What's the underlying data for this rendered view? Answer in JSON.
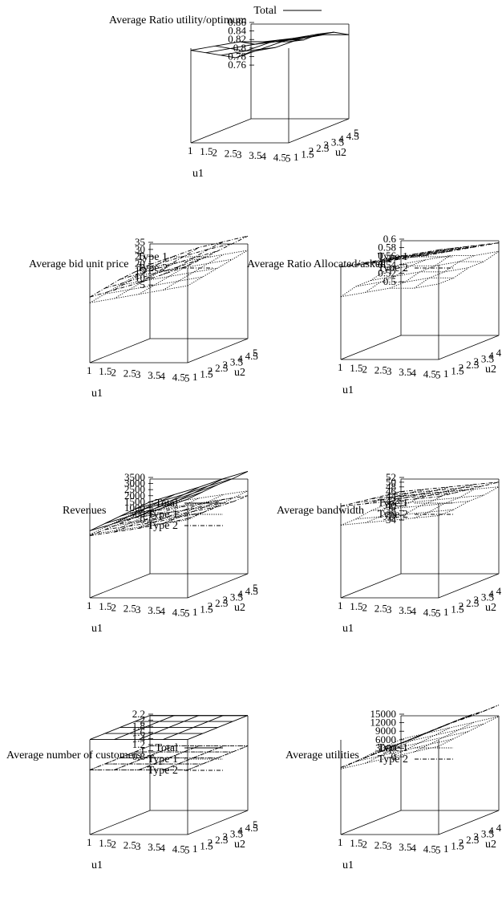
{
  "chart_data": [
    {
      "type": "surface3d",
      "title": "Average Ratio utility/optimum",
      "xlabel": "u1",
      "ylabel": "u2",
      "x_ticks": [
        "1",
        "1.5",
        "2",
        "2.5",
        "3",
        "3.5",
        "4",
        "4.5",
        "5"
      ],
      "y_ticks": [
        "1",
        "1.5",
        "2",
        "2.5",
        "3",
        "3.5",
        "4",
        "4.5",
        "5"
      ],
      "z_ticks": [
        "0.76",
        "0.78",
        "0.8",
        "0.82",
        "0.84",
        "0.86"
      ],
      "zlim": [
        0.76,
        0.86
      ],
      "x": [
        1,
        2,
        3,
        4,
        5
      ],
      "y": [
        1,
        2,
        3,
        4,
        5
      ],
      "series": [
        {
          "name": "Total",
          "style": "solid",
          "z": [
            [
              0.84,
              0.85,
              0.86,
              0.86,
              0.86
            ],
            [
              0.82,
              0.83,
              0.84,
              0.85,
              0.85
            ],
            [
              0.8,
              0.81,
              0.83,
              0.84,
              0.85
            ],
            [
              0.78,
              0.8,
              0.82,
              0.83,
              0.84
            ],
            [
              0.78,
              0.79,
              0.81,
              0.82,
              0.82
            ]
          ]
        }
      ]
    },
    {
      "type": "surface3d",
      "title": "Average bid unit price",
      "xlabel": "u1",
      "ylabel": "u2",
      "x_ticks": [
        "1",
        "1.5",
        "2",
        "2.5",
        "3",
        "3.5",
        "4",
        "4.5",
        "5"
      ],
      "y_ticks": [
        "1",
        "1.5",
        "2",
        "2.5",
        "3",
        "3.5",
        "4",
        "4.5",
        "5"
      ],
      "z_ticks": [
        "5",
        "10",
        "15",
        "20",
        "25",
        "30",
        "35"
      ],
      "zlim": [
        5,
        35
      ],
      "x": [
        1,
        2,
        3,
        4,
        5
      ],
      "y": [
        1,
        2,
        3,
        4,
        5
      ],
      "series": [
        {
          "name": "Type 1",
          "style": "dotted",
          "z": [
            [
              6,
              9,
              12,
              15,
              18
            ],
            [
              8,
              11,
              14,
              17,
              20
            ],
            [
              10,
              13,
              16,
              19,
              22
            ],
            [
              12,
              15,
              18,
              21,
              24
            ],
            [
              14,
              17,
              20,
              23,
              26
            ]
          ]
        },
        {
          "name": "Type 2",
          "style": "dashdot",
          "z": [
            [
              10,
              15,
              20,
              26,
              32
            ],
            [
              12,
              17,
              22,
              27,
              33
            ],
            [
              14,
              19,
              24,
              29,
              34
            ],
            [
              15,
              21,
              26,
              31,
              35
            ],
            [
              16,
              22,
              28,
              32,
              36
            ]
          ]
        }
      ]
    },
    {
      "type": "surface3d",
      "title": "Average Ratio Allocated/asked",
      "xlabel": "u1",
      "ylabel": "u2",
      "x_ticks": [
        "1",
        "1.5",
        "2",
        "2.5",
        "3",
        "3.5",
        "4",
        "4.5",
        "5"
      ],
      "y_ticks": [
        "1",
        "1.5",
        "2",
        "2.5",
        "3",
        "3.5",
        "4",
        "4.5",
        "5"
      ],
      "z_ticks": [
        "0.5",
        "0.52",
        "0.54",
        "0.56",
        "0.58",
        "0.6"
      ],
      "zlim": [
        0.5,
        0.6
      ],
      "x": [
        1,
        2,
        3,
        4,
        5
      ],
      "y": [
        1,
        2,
        3,
        4,
        5
      ],
      "series": [
        {
          "name": "Type 1",
          "style": "dotted",
          "z": [
            [
              0.51,
              0.52,
              0.53,
              0.53,
              0.54
            ],
            [
              0.52,
              0.53,
              0.53,
              0.54,
              0.54
            ],
            [
              0.52,
              0.53,
              0.54,
              0.54,
              0.55
            ],
            [
              0.53,
              0.54,
              0.54,
              0.55,
              0.55
            ],
            [
              0.53,
              0.54,
              0.55,
              0.55,
              0.56
            ]
          ]
        },
        {
          "name": "Type 2",
          "style": "dashdot",
          "z": [
            [
              0.58,
              0.59,
              0.6,
              0.61,
              0.62
            ],
            [
              0.57,
              0.58,
              0.59,
              0.6,
              0.61
            ],
            [
              0.56,
              0.57,
              0.58,
              0.59,
              0.6
            ],
            [
              0.55,
              0.56,
              0.57,
              0.58,
              0.59
            ],
            [
              0.55,
              0.55,
              0.56,
              0.57,
              0.58
            ]
          ]
        }
      ]
    },
    {
      "type": "surface3d",
      "title": "Revenues",
      "xlabel": "u1",
      "ylabel": "u2",
      "x_ticks": [
        "1",
        "1.5",
        "2",
        "2.5",
        "3",
        "3.5",
        "4",
        "4.5",
        "5"
      ],
      "y_ticks": [
        "1",
        "1.5",
        "2",
        "2.5",
        "3",
        "3.5",
        "4",
        "4.5",
        "5"
      ],
      "z_ticks": [
        "0",
        "500",
        "1000",
        "1500",
        "2000",
        "2500",
        "3000",
        "3500"
      ],
      "zlim": [
        0,
        3500
      ],
      "x": [
        1,
        2,
        3,
        4,
        5
      ],
      "y": [
        1,
        2,
        3,
        4,
        5
      ],
      "series": [
        {
          "name": "Total",
          "style": "solid",
          "z": [
            [
              700,
              1300,
              1900,
              2600,
              3300
            ],
            [
              800,
              1400,
              2000,
              2700,
              3400
            ],
            [
              900,
              1500,
              2100,
              2800,
              3500
            ],
            [
              1000,
              1600,
              2200,
              2900,
              3500
            ],
            [
              1100,
              1700,
              2300,
              3000,
              3600
            ]
          ]
        },
        {
          "name": "Type 1",
          "style": "dotted",
          "z": [
            [
              400,
              700,
              1000,
              1300,
              1600
            ],
            [
              500,
              800,
              1100,
              1400,
              1700
            ],
            [
              600,
              900,
              1200,
              1500,
              1800
            ],
            [
              700,
              1000,
              1300,
              1600,
              1900
            ],
            [
              800,
              1100,
              1400,
              1700,
              2000
            ]
          ]
        },
        {
          "name": "Type 2",
          "style": "dashdot",
          "z": [
            [
              300,
              600,
              900,
              1300,
              1700
            ],
            [
              300,
              600,
              900,
              1300,
              1700
            ],
            [
              300,
              600,
              900,
              1300,
              1700
            ],
            [
              300,
              600,
              900,
              1300,
              1600
            ],
            [
              300,
              600,
              900,
              1300,
              1600
            ]
          ]
        }
      ]
    },
    {
      "type": "surface3d",
      "title": "Average bandwidth",
      "xlabel": "u1",
      "ylabel": "u2",
      "x_ticks": [
        "1",
        "1.5",
        "2",
        "2.5",
        "3",
        "3.5",
        "4",
        "4.5",
        "5"
      ],
      "y_ticks": [
        "1",
        "1.5",
        "2",
        "2.5",
        "3",
        "3.5",
        "4",
        "4.5",
        "5"
      ],
      "z_ticks": [
        "34",
        "36",
        "38",
        "40",
        "42",
        "44",
        "46",
        "48",
        "50",
        "52"
      ],
      "zlim": [
        34,
        52
      ],
      "x": [
        1,
        2,
        3,
        4,
        5
      ],
      "y": [
        1,
        2,
        3,
        4,
        5
      ],
      "series": [
        {
          "name": "Type 1",
          "style": "dotted",
          "z": [
            [
              40,
              41,
              42,
              43,
              44
            ],
            [
              40,
              41,
              42,
              43,
              44
            ],
            [
              41,
              42,
              43,
              44,
              45
            ],
            [
              41,
              42,
              43,
              44,
              45
            ],
            [
              42,
              43,
              44,
              45,
              46
            ]
          ]
        },
        {
          "name": "Type 2",
          "style": "dashdot",
          "z": [
            [
              48,
              49,
              50,
              51,
              52
            ],
            [
              47,
              48,
              49,
              50,
              51
            ],
            [
              46,
              47,
              48,
              49,
              50
            ],
            [
              45,
              46,
              47,
              48,
              49
            ],
            [
              44,
              45,
              46,
              47,
              48
            ]
          ]
        }
      ]
    },
    {
      "type": "surface3d",
      "title": "Average number of customers",
      "xlabel": "u1",
      "ylabel": "u2",
      "x_ticks": [
        "1",
        "1.5",
        "2",
        "2.5",
        "3",
        "3.5",
        "4",
        "4.5",
        "5"
      ],
      "y_ticks": [
        "1",
        "1.5",
        "2",
        "2.5",
        "3",
        "3.5",
        "4",
        "4.5",
        "5"
      ],
      "z_ticks": [
        "0.8",
        "1",
        "1.2",
        "1.4",
        "1.6",
        "1.8",
        "2",
        "2.2"
      ],
      "zlim": [
        0.8,
        2.2
      ],
      "x": [
        1,
        2,
        3,
        4,
        5
      ],
      "y": [
        1,
        2,
        3,
        4,
        5
      ],
      "series": [
        {
          "name": "Total",
          "style": "solid",
          "z": [
            [
              2,
              2,
              2,
              2,
              2
            ],
            [
              2,
              2,
              2,
              2,
              2
            ],
            [
              2,
              2,
              2,
              2,
              2
            ],
            [
              2,
              2,
              2,
              2,
              2
            ],
            [
              2,
              2,
              2,
              2,
              2
            ]
          ]
        },
        {
          "name": "Type 1",
          "style": "dotted",
          "z": [
            [
              1,
              1,
              1,
              1,
              1
            ],
            [
              1,
              1,
              1,
              1,
              1
            ],
            [
              1,
              1,
              1,
              1,
              1
            ],
            [
              1,
              1,
              1,
              1,
              1
            ],
            [
              1,
              1,
              1,
              1,
              1
            ]
          ]
        },
        {
          "name": "Type 2",
          "style": "dashdot",
          "z": [
            [
              1,
              1,
              1,
              1,
              1
            ],
            [
              1,
              1,
              1,
              1,
              1
            ],
            [
              1,
              1,
              1,
              1,
              1
            ],
            [
              1,
              1,
              1,
              1,
              1
            ],
            [
              1,
              1,
              1,
              1,
              1
            ]
          ]
        }
      ]
    },
    {
      "type": "surface3d",
      "title": "Average utilities",
      "xlabel": "u1",
      "ylabel": "u2",
      "x_ticks": [
        "1",
        "1.5",
        "2",
        "2.5",
        "3",
        "3.5",
        "4",
        "4.5",
        "5"
      ],
      "y_ticks": [
        "1",
        "1.5",
        "2",
        "2.5",
        "3",
        "3.5",
        "4",
        "4.5",
        "5"
      ],
      "z_ticks": [
        "0",
        "3000",
        "6000",
        "9000",
        "12000",
        "15000"
      ],
      "zlim": [
        0,
        15000
      ],
      "x": [
        1,
        2,
        3,
        4,
        5
      ],
      "y": [
        1,
        2,
        3,
        4,
        5
      ],
      "series": [
        {
          "name": "Type 1",
          "style": "dotted",
          "z": [
            [
              2500,
              4500,
              6500,
              8500,
              10500
            ],
            [
              3000,
              5000,
              7000,
              9000,
              11000
            ],
            [
              3500,
              5500,
              7500,
              9500,
              11500
            ],
            [
              4000,
              6000,
              8000,
              10000,
              12000
            ],
            [
              4500,
              6500,
              8500,
              10500,
              12500
            ]
          ]
        },
        {
          "name": "Type 2",
          "style": "dashdot",
          "z": [
            [
              3000,
              6500,
              10000,
              13500,
              17000
            ],
            [
              3000,
              6500,
              10000,
              13500,
              17000
            ],
            [
              3000,
              6500,
              10000,
              13500,
              17000
            ],
            [
              3000,
              6500,
              10000,
              13500,
              16500
            ],
            [
              3000,
              6500,
              10000,
              13000,
              16500
            ]
          ]
        }
      ]
    }
  ]
}
